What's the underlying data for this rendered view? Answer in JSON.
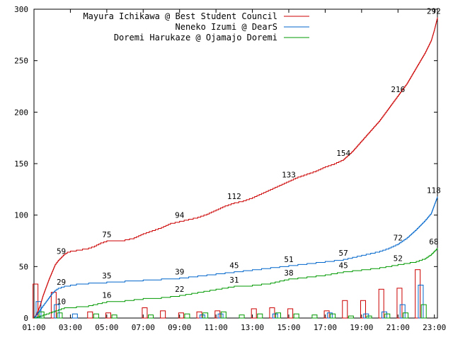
{
  "chart_data": {
    "type": "line",
    "title": "",
    "xlabel": "",
    "ylabel": "",
    "xlim": [
      60,
      1390
    ],
    "ylim": [
      0,
      300
    ],
    "x_ticks": [
      "01:00",
      "03:00",
      "05:00",
      "07:00",
      "09:00",
      "11:00",
      "13:00",
      "15:00",
      "17:00",
      "19:00",
      "21:00",
      "23:00"
    ],
    "y_ticks": [
      "0",
      "50",
      "100",
      "150",
      "200",
      "250",
      "300"
    ],
    "grid": false,
    "legend_position": "top-right",
    "series": [
      {
        "name": "Mayura Ichikawa @ Best Student Council",
        "color": "#cc0000",
        "cumulative": [
          [
            60,
            0
          ],
          [
            70,
            5
          ],
          [
            80,
            12
          ],
          [
            90,
            22
          ],
          [
            100,
            30
          ],
          [
            110,
            38
          ],
          [
            120,
            45
          ],
          [
            130,
            52
          ],
          [
            140,
            56
          ],
          [
            150,
            59
          ],
          [
            160,
            62
          ],
          [
            170,
            64
          ],
          [
            180,
            65
          ],
          [
            200,
            66
          ],
          [
            220,
            67
          ],
          [
            240,
            68
          ],
          [
            260,
            70
          ],
          [
            280,
            73
          ],
          [
            300,
            75
          ],
          [
            330,
            75
          ],
          [
            360,
            76
          ],
          [
            390,
            78
          ],
          [
            420,
            82
          ],
          [
            450,
            85
          ],
          [
            480,
            88
          ],
          [
            510,
            92
          ],
          [
            540,
            94
          ],
          [
            570,
            96
          ],
          [
            600,
            98
          ],
          [
            630,
            101
          ],
          [
            660,
            105
          ],
          [
            690,
            109
          ],
          [
            720,
            112
          ],
          [
            750,
            114
          ],
          [
            780,
            117
          ],
          [
            810,
            121
          ],
          [
            840,
            125
          ],
          [
            870,
            129
          ],
          [
            900,
            133
          ],
          [
            930,
            137
          ],
          [
            960,
            140
          ],
          [
            990,
            143
          ],
          [
            1020,
            147
          ],
          [
            1050,
            150
          ],
          [
            1080,
            154
          ],
          [
            1110,
            162
          ],
          [
            1140,
            172
          ],
          [
            1170,
            182
          ],
          [
            1200,
            192
          ],
          [
            1230,
            204
          ],
          [
            1260,
            216
          ],
          [
            1290,
            228
          ],
          [
            1320,
            243
          ],
          [
            1350,
            258
          ],
          [
            1370,
            270
          ],
          [
            1380,
            280
          ],
          [
            1390,
            292
          ]
        ],
        "labels": [
          {
            "x": 150,
            "y": 59,
            "text": "59"
          },
          {
            "x": 300,
            "y": 75,
            "text": "75"
          },
          {
            "x": 540,
            "y": 94,
            "text": "94"
          },
          {
            "x": 720,
            "y": 112,
            "text": "112"
          },
          {
            "x": 900,
            "y": 133,
            "text": "133"
          },
          {
            "x": 1080,
            "y": 154,
            "text": "154"
          },
          {
            "x": 1260,
            "y": 216,
            "text": "216"
          },
          {
            "x": 1378,
            "y": 292,
            "text": "292"
          }
        ],
        "hourly": [
          {
            "x": 65,
            "value": 33
          },
          {
            "x": 125,
            "value": 25
          },
          {
            "x": 245,
            "value": 6
          },
          {
            "x": 305,
            "value": 5
          },
          {
            "x": 425,
            "value": 10
          },
          {
            "x": 485,
            "value": 7
          },
          {
            "x": 545,
            "value": 5
          },
          {
            "x": 605,
            "value": 6
          },
          {
            "x": 665,
            "value": 7
          },
          {
            "x": 785,
            "value": 9
          },
          {
            "x": 845,
            "value": 10
          },
          {
            "x": 905,
            "value": 9
          },
          {
            "x": 1025,
            "value": 7
          },
          {
            "x": 1085,
            "value": 17
          },
          {
            "x": 1145,
            "value": 17
          },
          {
            "x": 1205,
            "value": 28
          },
          {
            "x": 1265,
            "value": 29
          },
          {
            "x": 1325,
            "value": 47
          }
        ]
      },
      {
        "name": "Neneko Izumi @ DearS",
        "color": "#0066cc",
        "cumulative": [
          [
            60,
            0
          ],
          [
            70,
            4
          ],
          [
            80,
            8
          ],
          [
            90,
            12
          ],
          [
            100,
            16
          ],
          [
            110,
            20
          ],
          [
            120,
            24
          ],
          [
            130,
            27
          ],
          [
            140,
            29
          ],
          [
            160,
            31
          ],
          [
            180,
            32
          ],
          [
            200,
            33
          ],
          [
            240,
            34
          ],
          [
            300,
            35
          ],
          [
            360,
            36
          ],
          [
            420,
            37
          ],
          [
            480,
            38
          ],
          [
            540,
            39
          ],
          [
            600,
            41
          ],
          [
            660,
            43
          ],
          [
            720,
            45
          ],
          [
            780,
            47
          ],
          [
            840,
            49
          ],
          [
            900,
            51
          ],
          [
            960,
            53
          ],
          [
            1020,
            55
          ],
          [
            1080,
            57
          ],
          [
            1140,
            61
          ],
          [
            1200,
            65
          ],
          [
            1230,
            68
          ],
          [
            1260,
            72
          ],
          [
            1290,
            78
          ],
          [
            1320,
            86
          ],
          [
            1350,
            95
          ],
          [
            1370,
            102
          ],
          [
            1380,
            110
          ],
          [
            1390,
            118
          ]
        ],
        "labels": [
          {
            "x": 150,
            "y": 29,
            "text": "29"
          },
          {
            "x": 300,
            "y": 35,
            "text": "35"
          },
          {
            "x": 540,
            "y": 39,
            "text": "39"
          },
          {
            "x": 720,
            "y": 45,
            "text": "45"
          },
          {
            "x": 900,
            "y": 51,
            "text": "51"
          },
          {
            "x": 1080,
            "y": 57,
            "text": "57"
          },
          {
            "x": 1260,
            "y": 72,
            "text": "72"
          },
          {
            "x": 1378,
            "y": 118,
            "text": "118"
          }
        ],
        "hourly": [
          {
            "x": 75,
            "value": 16
          },
          {
            "x": 135,
            "value": 13
          },
          {
            "x": 195,
            "value": 4
          },
          {
            "x": 615,
            "value": 3
          },
          {
            "x": 675,
            "value": 4
          },
          {
            "x": 855,
            "value": 4
          },
          {
            "x": 1035,
            "value": 5
          },
          {
            "x": 1155,
            "value": 4
          },
          {
            "x": 1215,
            "value": 6
          },
          {
            "x": 1275,
            "value": 13
          },
          {
            "x": 1335,
            "value": 32
          }
        ]
      },
      {
        "name": "Doremi Harukaze @ Ojamajo Doremi",
        "color": "#009900",
        "cumulative": [
          [
            60,
            0
          ],
          [
            80,
            2
          ],
          [
            100,
            4
          ],
          [
            120,
            6
          ],
          [
            140,
            8
          ],
          [
            160,
            10
          ],
          [
            200,
            11
          ],
          [
            240,
            12
          ],
          [
            270,
            14
          ],
          [
            300,
            16
          ],
          [
            360,
            17
          ],
          [
            420,
            19
          ],
          [
            480,
            20
          ],
          [
            540,
            22
          ],
          [
            600,
            25
          ],
          [
            660,
            28
          ],
          [
            720,
            31
          ],
          [
            780,
            32
          ],
          [
            840,
            34
          ],
          [
            900,
            38
          ],
          [
            960,
            40
          ],
          [
            1020,
            42
          ],
          [
            1080,
            45
          ],
          [
            1140,
            47
          ],
          [
            1200,
            49
          ],
          [
            1260,
            52
          ],
          [
            1320,
            55
          ],
          [
            1350,
            58
          ],
          [
            1370,
            62
          ],
          [
            1390,
            68
          ]
        ],
        "labels": [
          {
            "x": 150,
            "y": 10,
            "text": "10"
          },
          {
            "x": 300,
            "y": 16,
            "text": "16"
          },
          {
            "x": 540,
            "y": 22,
            "text": "22"
          },
          {
            "x": 720,
            "y": 31,
            "text": "31"
          },
          {
            "x": 900,
            "y": 38,
            "text": "38"
          },
          {
            "x": 1080,
            "y": 45,
            "text": "45"
          },
          {
            "x": 1260,
            "y": 52,
            "text": "52"
          },
          {
            "x": 1378,
            "y": 68,
            "text": "68"
          }
        ],
        "hourly": [
          {
            "x": 85,
            "value": 6
          },
          {
            "x": 145,
            "value": 5
          },
          {
            "x": 265,
            "value": 4
          },
          {
            "x": 325,
            "value": 3
          },
          {
            "x": 445,
            "value": 3
          },
          {
            "x": 565,
            "value": 4
          },
          {
            "x": 625,
            "value": 5
          },
          {
            "x": 685,
            "value": 6
          },
          {
            "x": 745,
            "value": 3
          },
          {
            "x": 805,
            "value": 4
          },
          {
            "x": 865,
            "value": 5
          },
          {
            "x": 925,
            "value": 4
          },
          {
            "x": 985,
            "value": 3
          },
          {
            "x": 1045,
            "value": 4
          },
          {
            "x": 1105,
            "value": 2
          },
          {
            "x": 1165,
            "value": 2
          },
          {
            "x": 1225,
            "value": 4
          },
          {
            "x": 1285,
            "value": 5
          },
          {
            "x": 1345,
            "value": 13
          }
        ]
      }
    ]
  }
}
